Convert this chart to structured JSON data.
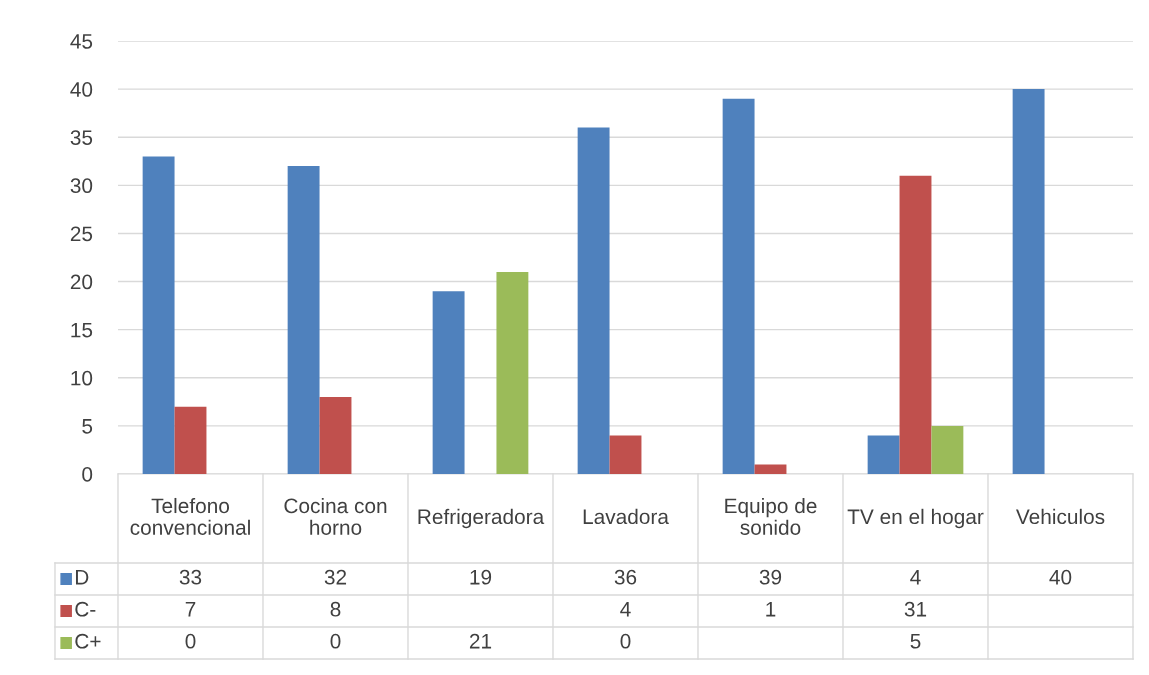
{
  "chart_data": {
    "type": "bar",
    "categories": [
      "Telefono convencional",
      "Cocina con horno",
      "Refrigeradora",
      "Lavadora",
      "Equipo de sonido",
      "TV en el hogar",
      "Vehiculos"
    ],
    "series": [
      {
        "name": "D",
        "color": "#4f81bd",
        "values": [
          33,
          32,
          19,
          36,
          39,
          4,
          40
        ]
      },
      {
        "name": "C-",
        "color": "#c0504d",
        "values": [
          7,
          8,
          null,
          4,
          1,
          31,
          null
        ]
      },
      {
        "name": "C+",
        "color": "#9bbb59",
        "values": [
          0,
          0,
          21,
          0,
          null,
          5,
          null
        ]
      }
    ],
    "ylim": [
      0,
      45
    ],
    "yticks": [
      0,
      5,
      10,
      15,
      20,
      25,
      30,
      35,
      40,
      45
    ],
    "grid": "y",
    "data_labels": true,
    "legend": "bottom"
  }
}
